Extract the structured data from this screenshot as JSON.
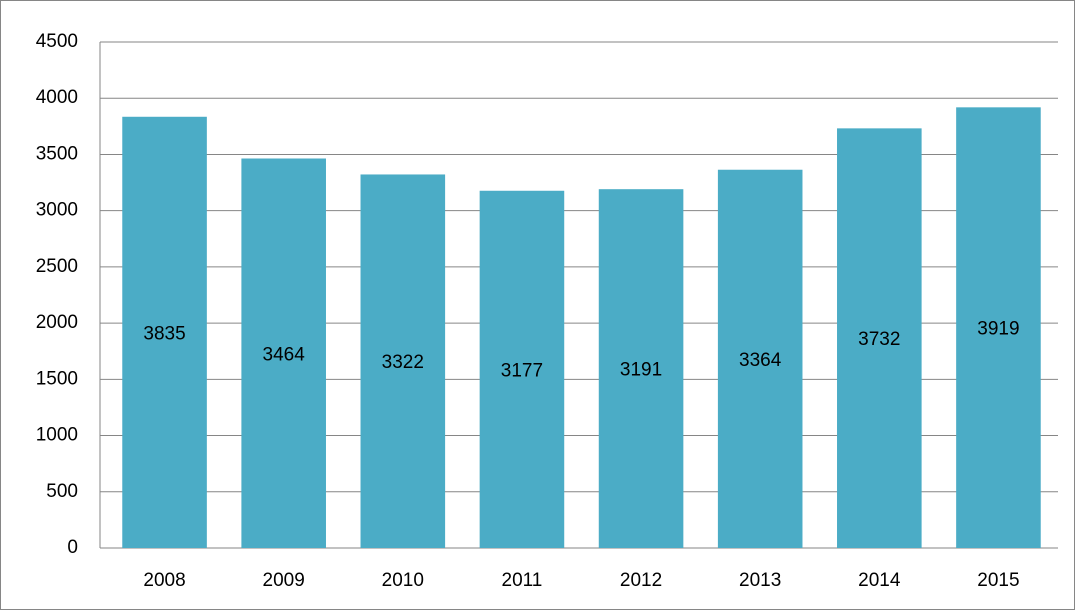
{
  "chart_data": {
    "type": "bar",
    "categories": [
      "2008",
      "2009",
      "2010",
      "2011",
      "2012",
      "2013",
      "2014",
      "2015"
    ],
    "values": [
      3835,
      3464,
      3322,
      3177,
      3191,
      3364,
      3732,
      3919
    ],
    "color": "#4bacc6",
    "ylim": [
      0,
      4500
    ],
    "yticks": [
      0,
      500,
      1000,
      1500,
      2000,
      2500,
      3000,
      3500,
      4000,
      4500
    ],
    "grid": true
  }
}
